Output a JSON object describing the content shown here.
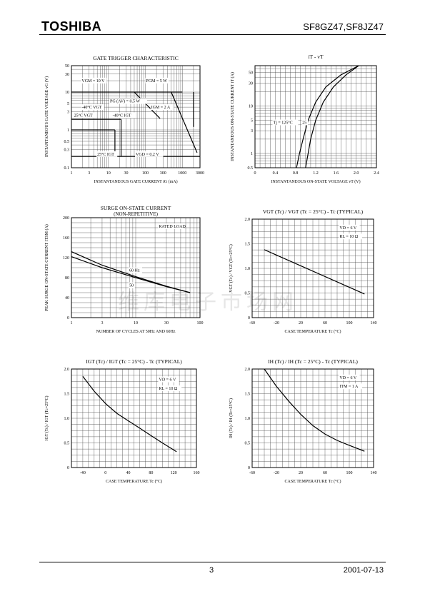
{
  "header": {
    "brand": "TOSHIBA",
    "part_number": "SF8GZ47,SF8JZ47"
  },
  "footer": {
    "page": "3",
    "date": "2001-07-13"
  },
  "watermark": "维库电子市场网",
  "chart_data": [
    {
      "id": "gate-trigger",
      "type": "line",
      "title": "GATE TRIGGER CHARACTERISTIC",
      "xlabel": "INSTANTANEOUS GATE CURRENT  iG  (mA)",
      "ylabel": "INSTANTANEOUS GATE VOLTAGE  vG  (V)",
      "xscale": "log",
      "yscale": "log",
      "xlim": [
        1,
        3000
      ],
      "ylim": [
        0.1,
        50
      ],
      "xticks": [
        1,
        3,
        10,
        30,
        100,
        300,
        1000,
        3000
      ],
      "xticklabels": [
        "1",
        "3",
        "10",
        "30",
        "100",
        "300",
        "1000",
        "3000"
      ],
      "yticks": [
        0.1,
        0.3,
        0.5,
        1,
        3,
        5,
        10,
        30,
        50
      ],
      "yticklabels": [
        "0.1",
        "0.3",
        "0.5",
        "1",
        "3",
        "5",
        "10",
        "30",
        "50"
      ],
      "series": [
        {
          "name": "VGM = 10 V",
          "x": [
            1,
            1000
          ],
          "y": [
            10,
            10
          ]
        },
        {
          "name": "IGM = 2 A",
          "x": [
            2000,
            2000
          ],
          "y": [
            1.2,
            10
          ]
        },
        {
          "name": "PGM = 5 W",
          "x": [
            500,
            2500
          ],
          "y": [
            10,
            0.25
          ]
        },
        {
          "name": "PG (AV) = 0.5 W",
          "x": [
            50,
            250
          ],
          "y": [
            10,
            2
          ]
        },
        {
          "name": "VGT 25°C",
          "x": [
            1,
            15
          ],
          "y": [
            1,
            1
          ]
        },
        {
          "name": "-40°C VGT",
          "x": [
            1,
            22
          ],
          "y": [
            1.9,
            1.9
          ]
        },
        {
          "name": "IGT 25°C",
          "x": [
            15,
            15
          ],
          "y": [
            0.2,
            1
          ]
        },
        {
          "name": "IGT -40°C",
          "x": [
            22,
            22
          ],
          "y": [
            0.2,
            1.9
          ]
        },
        {
          "name": "VGD = 0.2 V",
          "x": [
            1,
            3000
          ],
          "y": [
            0.2,
            0.2
          ]
        }
      ],
      "annotations": [
        "VGM = 10 V",
        "PGM = 5 W",
        "PG (AV) = 0.5 W",
        "IGM = 2 A",
        "-40°C VGT",
        "25°C VGT",
        "-40°C IGT",
        "25°C IGT",
        "VGD = 0.2 V"
      ]
    },
    {
      "id": "on-state",
      "type": "line",
      "title": "iT  -  vT",
      "xlabel": "INSTANTANEOUS ON-STATE VOLTAGE  vT  (V)",
      "ylabel": "INSTANTANEOUS ON-STATE CURRENT  iT  (A)",
      "xscale": "linear",
      "yscale": "log",
      "xlim": [
        0,
        2.4
      ],
      "ylim": [
        0.5,
        70
      ],
      "xticks": [
        0,
        0.4,
        0.8,
        1.2,
        1.6,
        2.0,
        2.4
      ],
      "xticklabels": [
        "0",
        "0.4",
        "0.8",
        "1.2",
        "1.6",
        "2.0",
        "2.4"
      ],
      "yticks": [
        0.5,
        1,
        3,
        5,
        10,
        30,
        50
      ],
      "yticklabels": [
        "0.5",
        "1",
        "3",
        "5",
        "10",
        "30",
        "50"
      ],
      "series": [
        {
          "name": "Tj = 125°C",
          "x": [
            0.82,
            0.88,
            0.95,
            1.05,
            1.2,
            1.4,
            1.7,
            2.05
          ],
          "y": [
            0.5,
            1,
            2,
            5,
            12,
            25,
            45,
            70
          ]
        },
        {
          "name": "25",
          "x": [
            1.0,
            1.05,
            1.1,
            1.2,
            1.35,
            1.55,
            1.8,
            2.05
          ],
          "y": [
            0.5,
            1,
            2,
            5,
            12,
            25,
            45,
            70
          ]
        }
      ],
      "annotations": [
        "Tj = 125°C",
        "25"
      ]
    },
    {
      "id": "surge",
      "type": "line",
      "title": "SURGE ON-STATE CURRENT",
      "subtitle": "(NON-REPETITIVE)",
      "xlabel": "NUMBER OF CYCLES AT 50Hz AND 60Hz",
      "ylabel": "PEAK SURGE ON-STATE CURRENT  ITSM  (A)",
      "xscale": "log",
      "yscale": "linear",
      "xlim": [
        1,
        100
      ],
      "ylim": [
        0,
        200
      ],
      "xticks": [
        1,
        3,
        10,
        30,
        100
      ],
      "xticklabels": [
        "1",
        "3",
        "10",
        "30",
        "100"
      ],
      "yticks": [
        0,
        40,
        80,
        120,
        160,
        200
      ],
      "yticklabels": [
        "0",
        "40",
        "80",
        "120",
        "160",
        "200"
      ],
      "series": [
        {
          "name": "60 Hz",
          "x": [
            1,
            3,
            10,
            30,
            70
          ],
          "y": [
            132,
            105,
            82,
            63,
            50
          ]
        },
        {
          "name": "50",
          "x": [
            1,
            3,
            10,
            30,
            70
          ],
          "y": [
            122,
            100,
            80,
            62,
            50
          ]
        }
      ],
      "annotations": [
        "RATED LOAD",
        "60 Hz",
        "50"
      ]
    },
    {
      "id": "vgt-tc",
      "type": "line",
      "title": "VGT (Tc) / VGT (Tc = 25°C)  -  Tc (TYPICAL)",
      "xlabel": "CASE TEMPERATURE  Tc  (°C)",
      "ylabel": "VGT (Tc) / VGT (Tc=25°C)",
      "xscale": "linear",
      "yscale": "linear",
      "xlim": [
        -60,
        140
      ],
      "ylim": [
        0,
        2.0
      ],
      "xticks": [
        -60,
        -20,
        20,
        60,
        100,
        140
      ],
      "xticklabels": [
        "-60",
        "-20",
        "20",
        "60",
        "100",
        "140"
      ],
      "yticks": [
        0,
        0.5,
        1.0,
        1.5,
        2.0
      ],
      "yticklabels": [
        "0",
        "0.5",
        "1.0",
        "1.5",
        "2.0"
      ],
      "series": [
        {
          "x": [
            -40,
            125
          ],
          "y": [
            1.38,
            0.48
          ]
        }
      ],
      "annotations": [
        "VD = 6 V",
        "RL = 10 Ω"
      ]
    },
    {
      "id": "igt-tc",
      "type": "line",
      "title": "IGT (Tc) / IGT (Tc = 25°C)  -  Tc (TYPICAL)",
      "xlabel": "CASE TEMPERATURE  Tc  (°C)",
      "ylabel": "IGT (Tc) / IGT (Tc=25°C)",
      "xscale": "linear",
      "yscale": "linear",
      "xlim": [
        -60,
        160
      ],
      "ylim": [
        0,
        2.0
      ],
      "xticks": [
        -40,
        0,
        40,
        80,
        120,
        160
      ],
      "xticklabels": [
        "-40",
        "0",
        "40",
        "80",
        "120",
        "160"
      ],
      "yticks": [
        0,
        0.5,
        1.0,
        1.5,
        2.0
      ],
      "yticklabels": [
        "0",
        "0.5",
        "1.0",
        "1.5",
        "2.0"
      ],
      "series": [
        {
          "x": [
            -40,
            -20,
            0,
            20,
            40,
            60,
            80,
            100,
            125
          ],
          "y": [
            1.85,
            1.55,
            1.3,
            1.1,
            0.95,
            0.8,
            0.65,
            0.5,
            0.32
          ]
        }
      ],
      "annotations": [
        "VD = 6 V",
        "RL = 10 Ω"
      ]
    },
    {
      "id": "ih-tc",
      "type": "line",
      "title": "IH (Tc) / IH (Tc = 25°C)  -  Tc (TYPICAL)",
      "xlabel": "CASE TEMPERATURE  Tc  (°C)",
      "ylabel": "IH (Tc) / IH (Tc=25°C)",
      "xscale": "linear",
      "yscale": "linear",
      "xlim": [
        -60,
        140
      ],
      "ylim": [
        0,
        2.0
      ],
      "xticks": [
        -60,
        -20,
        20,
        60,
        100,
        140
      ],
      "xticklabels": [
        "-60",
        "-20",
        "20",
        "60",
        "100",
        "140"
      ],
      "yticks": [
        0,
        0.5,
        1.0,
        1.5,
        2.0
      ],
      "yticklabels": [
        "0",
        "0.5",
        "1.0",
        "1.5",
        "2.0"
      ],
      "series": [
        {
          "x": [
            -40,
            -20,
            0,
            20,
            40,
            60,
            80,
            100,
            125
          ],
          "y": [
            2.0,
            1.65,
            1.35,
            1.08,
            0.85,
            0.68,
            0.55,
            0.45,
            0.33
          ]
        }
      ],
      "annotations": [
        "VD = 6 V",
        "ITM = 1 A"
      ]
    }
  ]
}
